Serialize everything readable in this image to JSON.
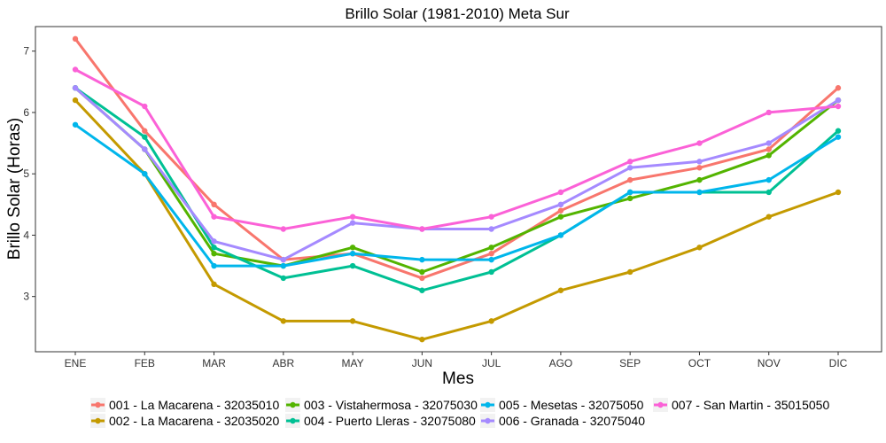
{
  "chart_data": {
    "type": "line",
    "title": "Brillo Solar (1981-2010)  Meta Sur",
    "xlabel": "Mes",
    "ylabel": "Brillo Solar (Horas)",
    "categories": [
      "ENE",
      "FEB",
      "MAR",
      "ABR",
      "MAY",
      "JUN",
      "JUL",
      "AGO",
      "SEP",
      "OCT",
      "NOV",
      "DIC"
    ],
    "yticks": [
      3,
      4,
      5,
      6,
      7
    ],
    "ylim": [
      2.1,
      7.4
    ],
    "grid": false,
    "legend_position": "bottom",
    "series": [
      {
        "name": "001 - La Macarena - 32035010",
        "color": "#F8766D",
        "values": [
          7.2,
          5.7,
          4.5,
          3.6,
          3.7,
          3.3,
          3.7,
          4.4,
          4.9,
          5.1,
          5.4,
          6.4
        ]
      },
      {
        "name": "002 - La Macarena - 32035020",
        "color": "#C49A00",
        "values": [
          6.2,
          5.0,
          3.2,
          2.6,
          2.6,
          2.3,
          2.6,
          3.1,
          3.4,
          3.8,
          4.3,
          4.7
        ]
      },
      {
        "name": "003 - Vistahermosa - 32075030",
        "color": "#53B400",
        "values": [
          6.4,
          5.4,
          3.7,
          3.5,
          3.8,
          3.4,
          3.8,
          4.3,
          4.6,
          4.9,
          5.3,
          6.2
        ]
      },
      {
        "name": "004 - Puerto Lleras - 32075080",
        "color": "#00C094",
        "values": [
          6.4,
          5.6,
          3.8,
          3.3,
          3.5,
          3.1,
          3.4,
          4.0,
          4.7,
          4.7,
          4.7,
          5.7
        ]
      },
      {
        "name": "005 - Mesetas - 32075050",
        "color": "#00B6EB",
        "values": [
          5.8,
          5.0,
          3.5,
          3.5,
          3.7,
          3.6,
          3.6,
          4.0,
          4.7,
          4.7,
          4.9,
          5.6
        ]
      },
      {
        "name": "006 - Granada - 32075040",
        "color": "#A58AFF",
        "values": [
          6.4,
          5.4,
          3.9,
          3.6,
          4.2,
          4.1,
          4.1,
          4.5,
          5.1,
          5.2,
          5.5,
          6.2
        ]
      },
      {
        "name": "007 - San Martin - 35015050",
        "color": "#FB61D7",
        "values": [
          6.7,
          6.1,
          4.3,
          4.1,
          4.3,
          4.1,
          4.3,
          4.7,
          5.2,
          5.5,
          6.0,
          6.1
        ]
      }
    ]
  }
}
